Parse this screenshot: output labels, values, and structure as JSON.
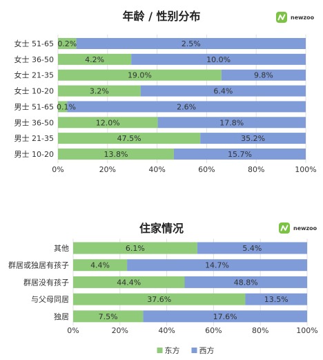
{
  "brand": {
    "logo_text": "newzoo"
  },
  "colors": {
    "east": "#8fcb79",
    "west": "#7f9bd8",
    "grid": "#e0e0e0"
  },
  "chart_data": [
    {
      "type": "bar",
      "orientation": "horizontal",
      "stacked": "percent",
      "title": "年龄 / 性别分布",
      "categories": [
        "女士 51-65",
        "女士 36-50",
        "女士 21-35",
        "女士 10-20",
        "男士 51-65",
        "男士 36-50",
        "男士 21-35",
        "男士 10-20"
      ],
      "series": [
        {
          "name": "东方",
          "values": [
            0.2,
            4.2,
            19.0,
            3.2,
            0.1,
            12.0,
            47.5,
            13.8
          ],
          "labels": [
            "0.2%",
            "4.2%",
            "19.0%",
            "3.2%",
            "0.1%",
            "12.0%",
            "47.5%",
            "13.8%"
          ]
        },
        {
          "name": "西方",
          "values": [
            2.5,
            10.0,
            9.8,
            6.4,
            2.6,
            17.8,
            35.2,
            15.7
          ],
          "labels": [
            "2.5%",
            "10.0%",
            "9.8%",
            "6.4%",
            "2.6%",
            "17.8%",
            "35.2%",
            "15.7%"
          ]
        }
      ],
      "ticks": [
        "0%",
        "20%",
        "40%",
        "60%",
        "80%",
        "100%"
      ],
      "xlim": [
        0,
        100
      ],
      "grid": true,
      "legend": "bottom"
    },
    {
      "type": "bar",
      "orientation": "horizontal",
      "stacked": "percent",
      "title": "住家情况",
      "categories": [
        "其他",
        "群居或独居有孩子",
        "群居没有孩子",
        "与父母同居",
        "独居"
      ],
      "series": [
        {
          "name": "东方",
          "values": [
            6.1,
            4.4,
            44.4,
            37.6,
            7.5
          ],
          "labels": [
            "6.1%",
            "4.4%",
            "44.4%",
            "37.6%",
            "7.5%"
          ]
        },
        {
          "name": "西方",
          "values": [
            5.4,
            14.7,
            48.8,
            13.5,
            17.6
          ],
          "labels": [
            "5.4%",
            "14.7%",
            "48.8%",
            "13.5%",
            "17.6%"
          ]
        }
      ],
      "ticks": [
        "0%",
        "20%",
        "40%",
        "60%",
        "80%",
        "100%"
      ],
      "xlim": [
        0,
        100
      ],
      "grid": true,
      "legend": "bottom"
    }
  ]
}
